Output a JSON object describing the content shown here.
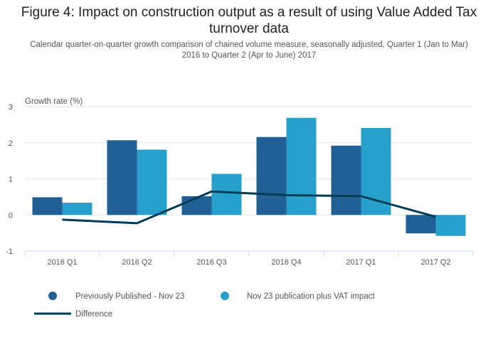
{
  "title": "Figure 4: Impact on construction output as a result of using Value Added Tax turnover data",
  "subtitle": "Calendar quarter-on-quarter growth comparison of chained volume measure, seasonally adjusted, Quarter 1 (Jan to Mar) 2016 to Quarter 2 (Apr to June) 2017",
  "colors": {
    "previously_published": "#206095",
    "vat_impact": "#27a0cc",
    "difference": "#003c57",
    "grid": "#e6e6e6",
    "axis": "#cbd5e8"
  },
  "chart_data": {
    "type": "bar",
    "title": "Figure 4: Impact on construction output as a result of using Value Added Tax turnover data",
    "subtitle": "Calendar quarter-on-quarter growth comparison of chained volume measure, seasonally adjusted, Quarter 1 (Jan to Mar) 2016 to Quarter 2 (Apr to June) 2017",
    "xlabel": "",
    "ylabel": "Growth rate (%)",
    "ylim": [
      -1,
      3
    ],
    "yticks": [
      3,
      2,
      1,
      0,
      -1
    ],
    "grid": true,
    "legend_position": "bottom-left",
    "categories": [
      "2016 Q1",
      "2016 Q2",
      "2016 Q3",
      "2016 Q4",
      "2017 Q1",
      "2017 Q2"
    ],
    "series": [
      {
        "name": "Previously Published - Nov 23",
        "type": "bar",
        "values": [
          0.49,
          2.07,
          0.52,
          2.16,
          1.92,
          -0.51
        ]
      },
      {
        "name": "Nov 23 publication plus VAT impact",
        "type": "bar",
        "values": [
          0.34,
          1.81,
          1.14,
          2.69,
          2.41,
          -0.58
        ]
      },
      {
        "name": "Difference",
        "type": "line",
        "values": [
          -0.13,
          -0.23,
          0.65,
          0.55,
          0.52,
          -0.05
        ]
      }
    ]
  }
}
